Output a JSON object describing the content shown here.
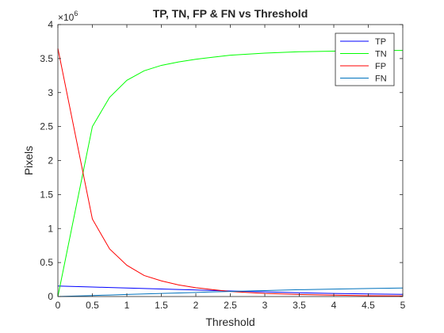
{
  "chart_data": {
    "type": "line",
    "title": "TP, TN, FP & FN vs Threshold",
    "xlabel": "Threshold",
    "ylabel": "Pixels",
    "y_exponent_label": "×10",
    "y_exponent_power": "6",
    "xlim": [
      0,
      5
    ],
    "ylim": [
      0,
      4
    ],
    "xticks": [
      "0",
      "0.5",
      "1",
      "1.5",
      "2",
      "2.5",
      "3",
      "3.5",
      "4",
      "4.5",
      "5"
    ],
    "xtick_values": [
      0,
      0.5,
      1,
      1.5,
      2,
      2.5,
      3,
      3.5,
      4,
      4.5,
      5
    ],
    "yticks": [
      "0",
      "0.5",
      "1",
      "1.5",
      "2",
      "2.5",
      "3",
      "3.5",
      "4"
    ],
    "ytick_values": [
      0,
      0.5,
      1,
      1.5,
      2,
      2.5,
      3,
      3.5,
      4
    ],
    "legend_position": "top-right",
    "grid": false,
    "x": [
      0,
      0.5,
      0.75,
      1,
      1.25,
      1.5,
      1.75,
      2,
      2.25,
      2.5,
      3,
      3.5,
      4,
      4.5,
      5
    ],
    "series": [
      {
        "name": "TP",
        "color": "#0000ff",
        "values": [
          0.155,
          0.14,
          0.133,
          0.126,
          0.118,
          0.111,
          0.104,
          0.096,
          0.089,
          0.082,
          0.068,
          0.055,
          0.045,
          0.038,
          0.032
        ]
      },
      {
        "name": "TN",
        "color": "#00ff00",
        "values": [
          0,
          2.5,
          2.93,
          3.18,
          3.32,
          3.4,
          3.45,
          3.49,
          3.52,
          3.55,
          3.58,
          3.6,
          3.61,
          3.62,
          3.62
        ]
      },
      {
        "name": "FP",
        "color": "#ff0000",
        "values": [
          3.65,
          1.14,
          0.7,
          0.46,
          0.31,
          0.23,
          0.17,
          0.13,
          0.1,
          0.075,
          0.045,
          0.03,
          0.02,
          0.012,
          0.008
        ]
      },
      {
        "name": "FN",
        "color": "#0072bd",
        "values": [
          0,
          0.015,
          0.022,
          0.03,
          0.038,
          0.045,
          0.053,
          0.06,
          0.068,
          0.075,
          0.088,
          0.1,
          0.11,
          0.118,
          0.125
        ]
      }
    ]
  }
}
